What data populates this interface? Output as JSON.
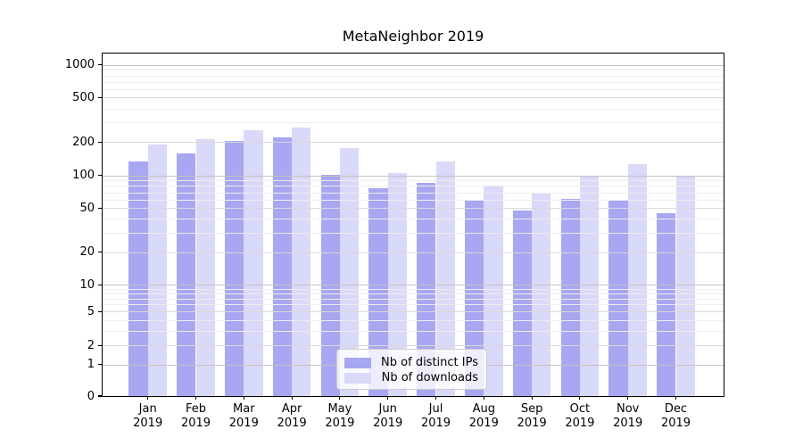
{
  "title": "MetaNeighbor 2019",
  "chart_data": {
    "type": "bar",
    "title": "MetaNeighbor 2019",
    "categories": [
      "Jan 2019",
      "Feb 2019",
      "Mar 2019",
      "Apr 2019",
      "May 2019",
      "Jun 2019",
      "Jul 2019",
      "Aug 2019",
      "Sep 2019",
      "Oct 2019",
      "Nov 2019",
      "Dec 2019"
    ],
    "series": [
      {
        "name": "Nb of distinct IPs",
        "color": "#a7a7f2",
        "values": [
          133,
          159,
          205,
          219,
          102,
          76,
          85,
          58,
          48,
          61,
          60,
          45
        ]
      },
      {
        "name": "Nb of downloads",
        "color": "#d9d9f9",
        "values": [
          192,
          211,
          257,
          269,
          176,
          106,
          134,
          81,
          69,
          100,
          126,
          97
        ]
      }
    ],
    "xlabel": "",
    "ylabel": "",
    "yscale": "symlog",
    "y_ticks": [
      "1000",
      "500",
      "200",
      "100",
      "50",
      "20",
      "10",
      "5",
      "2",
      "1",
      "0"
    ],
    "ylim": [
      0,
      1280
    ],
    "grid": "both",
    "legend_position": "lower center",
    "grid_major_color": "#c3c3c3",
    "grid_sub_color": "#d9d9d9",
    "grid_minor_color": "#ededed"
  }
}
